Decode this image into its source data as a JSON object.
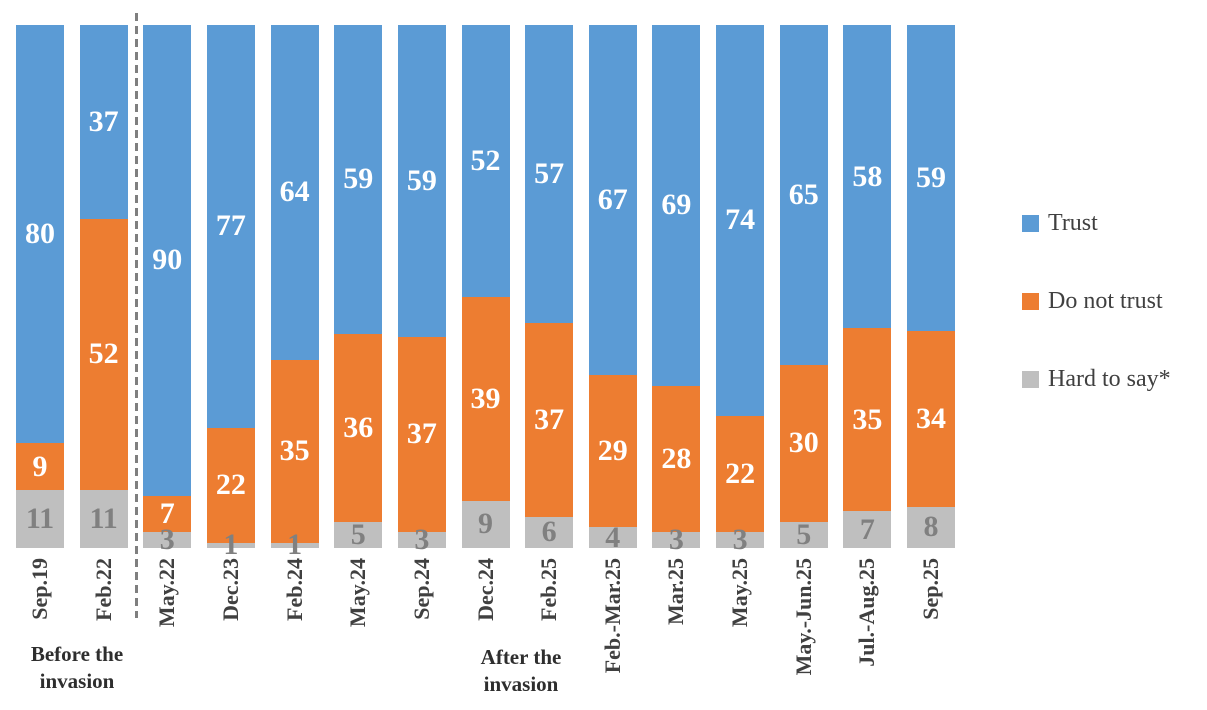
{
  "chart_data": {
    "type": "bar",
    "subtype": "stacked-100-percent-column",
    "title": "",
    "xlabel": "",
    "ylabel": "",
    "grid": false,
    "legend_position": "right",
    "categories": [
      "Sep.19",
      "Feb.22",
      "May.22",
      "Dec.23",
      "Feb.24",
      "May.24",
      "Sep.24",
      "Dec.24",
      "Feb.25",
      "Feb.-Mar.25",
      "Mar.25",
      "May.25",
      "May.-Jun.25",
      "Jul.-Aug.25",
      "Sep.25"
    ],
    "series": [
      {
        "name": "Trust",
        "color": "#5B9BD5",
        "label_color": "#FFFFFF",
        "values": [
          80,
          37,
          90,
          77,
          64,
          59,
          59,
          52,
          57,
          67,
          69,
          74,
          65,
          58,
          59
        ]
      },
      {
        "name": "Do not trust",
        "color": "#ED7D31",
        "label_color": "#FFFFFF",
        "values": [
          9,
          52,
          7,
          22,
          35,
          36,
          37,
          39,
          37,
          29,
          28,
          22,
          30,
          35,
          34
        ]
      },
      {
        "name": "Hard to say*",
        "color": "#BFBFBF",
        "label_color": "#808080",
        "values": [
          11,
          11,
          3,
          1,
          1,
          5,
          3,
          9,
          6,
          4,
          3,
          3,
          5,
          7,
          8
        ]
      }
    ],
    "annotations": {
      "before_label": "Before the invasion",
      "after_label": "After the invasion"
    },
    "separator_after_category_index": 1,
    "separator_color": "#7F7F7F",
    "axis_text_color": "#404040"
  }
}
